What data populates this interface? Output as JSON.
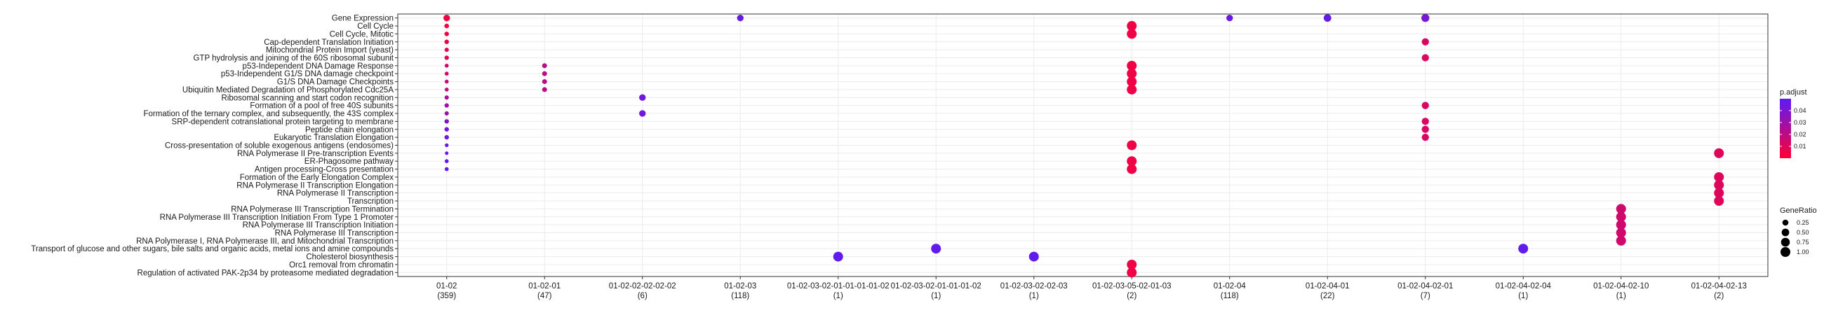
{
  "chart_data": {
    "type": "scatter",
    "title": "",
    "xlabel": "",
    "ylabel": "",
    "grid": true,
    "legend_position": "right",
    "clusters": [
      {
        "name": "01-02",
        "count": "(359)"
      },
      {
        "name": "01-02-01",
        "count": "(47)"
      },
      {
        "name": "01-02-02-02-02-02",
        "count": "(6)"
      },
      {
        "name": "01-02-03",
        "count": "(118)"
      },
      {
        "name": "01-02-03-02-01-01-01-01-02",
        "count": "(1)"
      },
      {
        "name": "01-02-03-02-01-01-01-02",
        "count": "(1)"
      },
      {
        "name": "01-02-03-02-02-03",
        "count": "(1)"
      },
      {
        "name": "01-02-03-05-02-01-03",
        "count": "(2)"
      },
      {
        "name": "01-02-04",
        "count": "(118)"
      },
      {
        "name": "01-02-04-01",
        "count": "(22)"
      },
      {
        "name": "01-02-04-02-01",
        "count": "(7)"
      },
      {
        "name": "01-02-04-02-04",
        "count": "(1)"
      },
      {
        "name": "01-02-04-02-10",
        "count": "(1)"
      },
      {
        "name": "01-02-04-02-13",
        "count": "(2)"
      }
    ],
    "terms": [
      "Gene Expression",
      "Cell Cycle",
      "Cell Cycle, Mitotic",
      "Cap-dependent Translation Initiation",
      "Mitochondrial Protein Import (yeast)",
      "GTP hydrolysis and joining of the 60S ribosomal subunit",
      "p53-Independent DNA Damage Response",
      "p53-Independent G1/S DNA damage checkpoint",
      "G1/S DNA Damage Checkpoints",
      "Ubiquitin Mediated Degradation of Phosphorylated Cdc25A",
      "Ribosomal scanning and start codon recognition",
      "Formation of a pool of free 40S subunits",
      "Formation of the ternary complex, and subsequently, the 43S complex",
      "SRP-dependent cotranslational protein targeting to membrane",
      "Peptide chain elongation",
      "Eukaryotic Translation Elongation",
      "Cross-presentation of soluble exogenous antigens (endosomes)",
      "RNA Polymerase II Pre-transcription Events",
      "ER-Phagosome pathway",
      "Antigen processing-Cross presentation",
      "Formation of the Early Elongation Complex",
      "RNA Polymerase II Transcription Elongation",
      "RNA Polymerase II Transcription",
      "Transcription",
      "RNA Polymerase III Transcription Termination",
      "RNA Polymerase III Transcription Initiation From Type 1 Promoter",
      "RNA Polymerase III Transcription Initiation",
      "RNA Polymerase III Transcription",
      "RNA Polymerase I, RNA Polymerase III, and Mitochondrial Transcription",
      "Transport of glucose and other sugars, bile salts and organic acids, metal ions and amine compounds",
      "Cholesterol biosynthesis",
      "Orc1 removal from chromatin",
      "Regulation of activated PAK-2p34 by proteasome mediated degradation"
    ],
    "points": [
      {
        "cluster": "01-02",
        "term": "Gene Expression",
        "gene_ratio": 0.33,
        "p_adjust": 0.004
      },
      {
        "cluster": "01-02",
        "term": "Cell Cycle",
        "gene_ratio": 0.1,
        "p_adjust": 0.003
      },
      {
        "cluster": "01-02",
        "term": "Cell Cycle, Mitotic",
        "gene_ratio": 0.09,
        "p_adjust": 0.004
      },
      {
        "cluster": "01-02",
        "term": "Cap-dependent Translation Initiation",
        "gene_ratio": 0.09,
        "p_adjust": 0.006
      },
      {
        "cluster": "01-02",
        "term": "Mitochondrial Protein Import (yeast)",
        "gene_ratio": 0.07,
        "p_adjust": 0.007
      },
      {
        "cluster": "01-02",
        "term": "GTP hydrolysis and joining of the 60S ribosomal subunit",
        "gene_ratio": 0.08,
        "p_adjust": 0.01
      },
      {
        "cluster": "01-02",
        "term": "p53-Independent DNA Damage Response",
        "gene_ratio": 0.05,
        "p_adjust": 0.015
      },
      {
        "cluster": "01-02",
        "term": "p53-Independent G1/S DNA damage checkpoint",
        "gene_ratio": 0.05,
        "p_adjust": 0.015
      },
      {
        "cluster": "01-02",
        "term": "G1/S DNA Damage Checkpoints",
        "gene_ratio": 0.05,
        "p_adjust": 0.016
      },
      {
        "cluster": "01-02",
        "term": "Ubiquitin Mediated Degradation of Phosphorylated Cdc25A",
        "gene_ratio": 0.05,
        "p_adjust": 0.017
      },
      {
        "cluster": "01-02",
        "term": "Ribosomal scanning and start codon recognition",
        "gene_ratio": 0.07,
        "p_adjust": 0.025
      },
      {
        "cluster": "01-02",
        "term": "Formation of a pool of free 40S subunits",
        "gene_ratio": 0.08,
        "p_adjust": 0.028
      },
      {
        "cluster": "01-02",
        "term": "Formation of the ternary complex, and subsequently, the 43S complex",
        "gene_ratio": 0.07,
        "p_adjust": 0.03
      },
      {
        "cluster": "01-02",
        "term": "SRP-dependent cotranslational protein targeting to membrane",
        "gene_ratio": 0.09,
        "p_adjust": 0.04
      },
      {
        "cluster": "01-02",
        "term": "Peptide chain elongation",
        "gene_ratio": 0.09,
        "p_adjust": 0.042
      },
      {
        "cluster": "01-02",
        "term": "Eukaryotic Translation Elongation",
        "gene_ratio": 0.09,
        "p_adjust": 0.044
      },
      {
        "cluster": "01-02",
        "term": "Cross-presentation of soluble exogenous antigens (endosomes)",
        "gene_ratio": 0.04,
        "p_adjust": 0.047
      },
      {
        "cluster": "01-02",
        "term": "RNA Polymerase II Pre-transcription Events",
        "gene_ratio": 0.03,
        "p_adjust": 0.048
      },
      {
        "cluster": "01-02",
        "term": "ER-Phagosome pathway",
        "gene_ratio": 0.05,
        "p_adjust": 0.048
      },
      {
        "cluster": "01-02",
        "term": "Antigen processing-Cross presentation",
        "gene_ratio": 0.05,
        "p_adjust": 0.049
      },
      {
        "cluster": "01-02-01",
        "term": "p53-Independent DNA Damage Response",
        "gene_ratio": 0.12,
        "p_adjust": 0.021
      },
      {
        "cluster": "01-02-01",
        "term": "p53-Independent G1/S DNA damage checkpoint",
        "gene_ratio": 0.12,
        "p_adjust": 0.021
      },
      {
        "cluster": "01-02-01",
        "term": "G1/S DNA Damage Checkpoints",
        "gene_ratio": 0.12,
        "p_adjust": 0.022
      },
      {
        "cluster": "01-02-01",
        "term": "Ubiquitin Mediated Degradation of Phosphorylated Cdc25A",
        "gene_ratio": 0.12,
        "p_adjust": 0.022
      },
      {
        "cluster": "01-02-02-02-02-02",
        "term": "Ribosomal scanning and start codon recognition",
        "gene_ratio": 0.33,
        "p_adjust": 0.043
      },
      {
        "cluster": "01-02-02-02-02-02",
        "term": "Formation of the ternary complex, and subsequently, the 43S complex",
        "gene_ratio": 0.33,
        "p_adjust": 0.043
      },
      {
        "cluster": "01-02-03",
        "term": "Gene Expression",
        "gene_ratio": 0.33,
        "p_adjust": 0.046
      },
      {
        "cluster": "01-02-03-02-01-01-01-01-02",
        "term": "Cholesterol biosynthesis",
        "gene_ratio": 1.0,
        "p_adjust": 0.048
      },
      {
        "cluster": "01-02-03-02-01-01-01-02",
        "term": "Transport of glucose and other sugars, bile salts and organic acids, metal ions and amine compounds",
        "gene_ratio": 1.0,
        "p_adjust": 0.048
      },
      {
        "cluster": "01-02-03-02-02-03",
        "term": "Cholesterol biosynthesis",
        "gene_ratio": 1.0,
        "p_adjust": 0.048
      },
      {
        "cluster": "01-02-03-05-02-01-03",
        "term": "Cell Cycle",
        "gene_ratio": 1.0,
        "p_adjust": 0.005
      },
      {
        "cluster": "01-02-03-05-02-01-03",
        "term": "Cell Cycle, Mitotic",
        "gene_ratio": 1.0,
        "p_adjust": 0.005
      },
      {
        "cluster": "01-02-03-05-02-01-03",
        "term": "p53-Independent DNA Damage Response",
        "gene_ratio": 1.0,
        "p_adjust": 0.005
      },
      {
        "cluster": "01-02-03-05-02-01-03",
        "term": "p53-Independent G1/S DNA damage checkpoint",
        "gene_ratio": 1.0,
        "p_adjust": 0.005
      },
      {
        "cluster": "01-02-03-05-02-01-03",
        "term": "G1/S DNA Damage Checkpoints",
        "gene_ratio": 1.0,
        "p_adjust": 0.005
      },
      {
        "cluster": "01-02-03-05-02-01-03",
        "term": "Ubiquitin Mediated Degradation of Phosphorylated Cdc25A",
        "gene_ratio": 1.0,
        "p_adjust": 0.005
      },
      {
        "cluster": "01-02-03-05-02-01-03",
        "term": "Cross-presentation of soluble exogenous antigens (endosomes)",
        "gene_ratio": 1.0,
        "p_adjust": 0.005
      },
      {
        "cluster": "01-02-03-05-02-01-03",
        "term": "ER-Phagosome pathway",
        "gene_ratio": 1.0,
        "p_adjust": 0.005
      },
      {
        "cluster": "01-02-03-05-02-01-03",
        "term": "Antigen processing-Cross presentation",
        "gene_ratio": 1.0,
        "p_adjust": 0.005
      },
      {
        "cluster": "01-02-03-05-02-01-03",
        "term": "Orc1 removal from chromatin",
        "gene_ratio": 1.0,
        "p_adjust": 0.005
      },
      {
        "cluster": "01-02-03-05-02-01-03",
        "term": "Regulation of activated PAK-2p34 by proteasome mediated degradation",
        "gene_ratio": 1.0,
        "p_adjust": 0.005
      },
      {
        "cluster": "01-02-04",
        "term": "Gene Expression",
        "gene_ratio": 0.33,
        "p_adjust": 0.045
      },
      {
        "cluster": "01-02-04-01",
        "term": "Gene Expression",
        "gene_ratio": 0.5,
        "p_adjust": 0.046
      },
      {
        "cluster": "01-02-04-02-01",
        "term": "Gene Expression",
        "gene_ratio": 0.57,
        "p_adjust": 0.041
      },
      {
        "cluster": "01-02-04-02-01",
        "term": "Cap-dependent Translation Initiation",
        "gene_ratio": 0.43,
        "p_adjust": 0.012
      },
      {
        "cluster": "01-02-04-02-01",
        "term": "GTP hydrolysis and joining of the 60S ribosomal subunit",
        "gene_ratio": 0.43,
        "p_adjust": 0.012
      },
      {
        "cluster": "01-02-04-02-01",
        "term": "Formation of a pool of free 40S subunits",
        "gene_ratio": 0.43,
        "p_adjust": 0.012
      },
      {
        "cluster": "01-02-04-02-01",
        "term": "SRP-dependent cotranslational protein targeting to membrane",
        "gene_ratio": 0.43,
        "p_adjust": 0.012
      },
      {
        "cluster": "01-02-04-02-01",
        "term": "Peptide chain elongation",
        "gene_ratio": 0.43,
        "p_adjust": 0.012
      },
      {
        "cluster": "01-02-04-02-01",
        "term": "Eukaryotic Translation Elongation",
        "gene_ratio": 0.43,
        "p_adjust": 0.012
      },
      {
        "cluster": "01-02-04-02-04",
        "term": "Transport of glucose and other sugars, bile salts and organic acids, metal ions and amine compounds",
        "gene_ratio": 1.0,
        "p_adjust": 0.048
      },
      {
        "cluster": "01-02-04-02-10",
        "term": "RNA Polymerase III Transcription Termination",
        "gene_ratio": 1.0,
        "p_adjust": 0.015
      },
      {
        "cluster": "01-02-04-02-10",
        "term": "RNA Polymerase III Transcription Initiation From Type 1 Promoter",
        "gene_ratio": 1.0,
        "p_adjust": 0.015
      },
      {
        "cluster": "01-02-04-02-10",
        "term": "RNA Polymerase III Transcription Initiation",
        "gene_ratio": 1.0,
        "p_adjust": 0.015
      },
      {
        "cluster": "01-02-04-02-10",
        "term": "RNA Polymerase III Transcription",
        "gene_ratio": 1.0,
        "p_adjust": 0.015
      },
      {
        "cluster": "01-02-04-02-10",
        "term": "RNA Polymerase I, RNA Polymerase III, and Mitochondrial Transcription",
        "gene_ratio": 1.0,
        "p_adjust": 0.015
      },
      {
        "cluster": "01-02-04-02-13",
        "term": "RNA Polymerase II Pre-transcription Events",
        "gene_ratio": 1.0,
        "p_adjust": 0.01
      },
      {
        "cluster": "01-02-04-02-13",
        "term": "Formation of the Early Elongation Complex",
        "gene_ratio": 1.0,
        "p_adjust": 0.01
      },
      {
        "cluster": "01-02-04-02-13",
        "term": "RNA Polymerase II Transcription Elongation",
        "gene_ratio": 1.0,
        "p_adjust": 0.01
      },
      {
        "cluster": "01-02-04-02-13",
        "term": "RNA Polymerase II Transcription",
        "gene_ratio": 1.0,
        "p_adjust": 0.01
      },
      {
        "cluster": "01-02-04-02-13",
        "term": "Transcription",
        "gene_ratio": 1.0,
        "p_adjust": 0.01
      }
    ],
    "color_legend": {
      "title": "p.adjust",
      "ticks": [
        0.01,
        0.02,
        0.03,
        0.04
      ],
      "tick_labels": [
        "0.01",
        "0.02",
        "0.03",
        "0.04"
      ],
      "range": [
        0.0,
        0.05
      ],
      "low_color": "#ff0033",
      "high_color": "#5b1cf5"
    },
    "size_legend": {
      "title": "GeneRatio",
      "values": [
        0.25,
        0.5,
        0.75,
        1.0
      ],
      "labels": [
        "0.25",
        "0.50",
        "0.75",
        "1.00"
      ]
    }
  }
}
